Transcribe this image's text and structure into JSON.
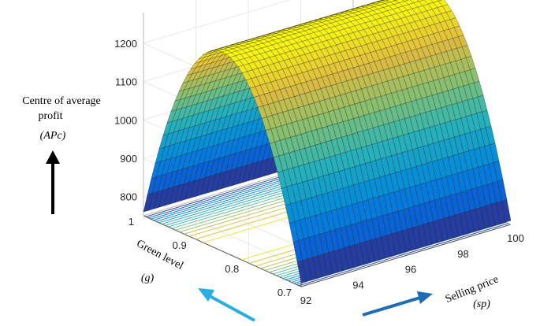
{
  "chart_data": {
    "type": "surface",
    "z_label_line1": "Centre of average",
    "z_label_line2": "profit",
    "z_symbol": "(APc)",
    "y_label": "Green level",
    "y_symbol": "(g)",
    "x_label": "Selling price",
    "x_symbol": "(sp)",
    "x_ticks": [
      92,
      94,
      96,
      98,
      100
    ],
    "y_ticks": [
      0.7,
      0.8,
      0.9,
      1
    ],
    "z_ticks": [
      800,
      900,
      1000,
      1100,
      1200
    ],
    "xlim": [
      92,
      100
    ],
    "ylim": [
      0.7,
      1
    ],
    "zlim": [
      750,
      1280
    ],
    "peak_profit": 1270,
    "peak_green_level": 0.85,
    "min_profit": 760,
    "contour_projection": true,
    "colormap": "parula",
    "colors": {
      "arrow_z": "#000000",
      "arrow_g": "#29aee3",
      "arrow_sp": "#1f6cb5"
    }
  }
}
